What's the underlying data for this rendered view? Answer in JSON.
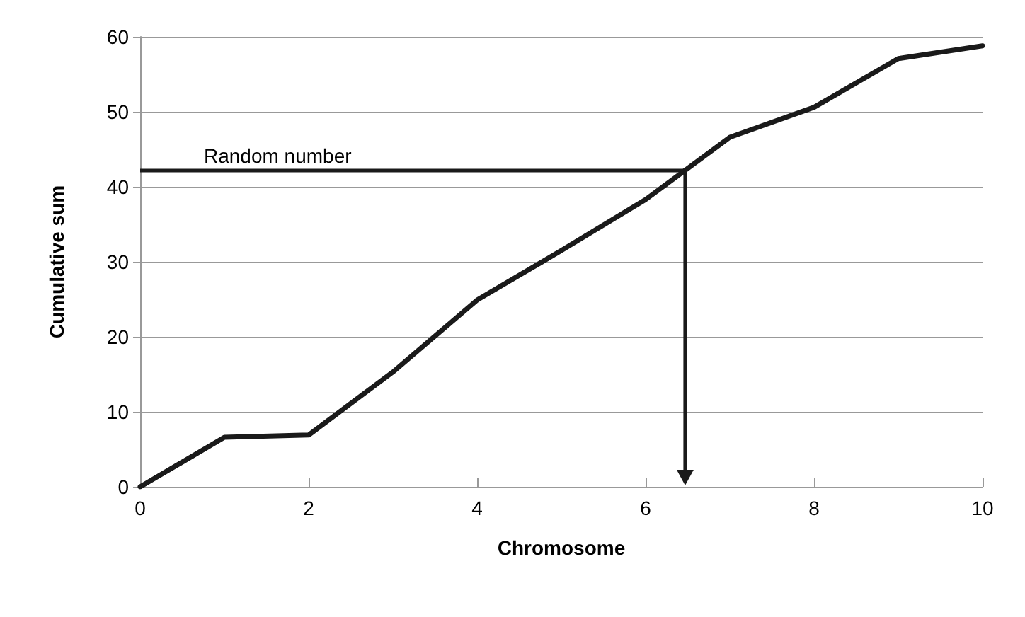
{
  "chart_data": {
    "type": "line",
    "xlabel": "Chromosome",
    "ylabel": "Cumulative sum",
    "x": [
      0,
      1,
      2,
      3,
      4,
      5,
      6,
      7,
      8,
      9,
      10
    ],
    "series": [
      {
        "color": "#1a1a1a",
        "values": [
          0,
          6.6,
          6.9,
          15.3,
          24.9,
          31.5,
          38.3,
          46.6,
          50.6,
          57.1,
          58.8
        ]
      }
    ],
    "xlim": [
      0,
      10
    ],
    "xticks": [
      0,
      2,
      4,
      6,
      8,
      10
    ],
    "ylim": [
      0,
      60
    ],
    "yticks": [
      0,
      10,
      20,
      30,
      40,
      50,
      60
    ],
    "grid": "y",
    "marker": "none",
    "line_style": "solid",
    "ref_lines": [
      {
        "axis": "y",
        "value": 42.2,
        "label": "Random number",
        "color": "#1a1a1a"
      }
    ]
  }
}
